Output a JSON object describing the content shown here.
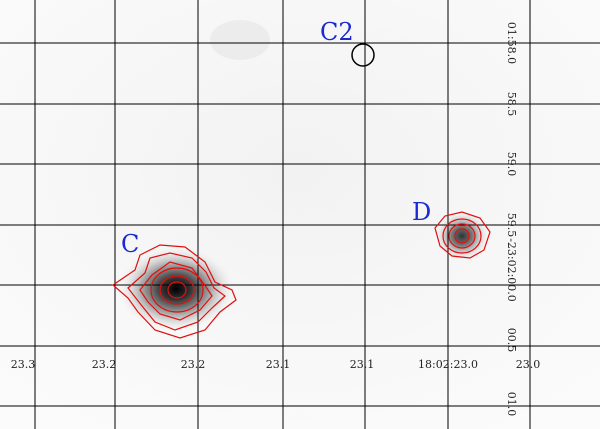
{
  "x_axis": {
    "tick_labels": [
      "23.3",
      "23.2",
      "23.2",
      "23.1",
      "23.1",
      "18:02:23.0",
      "23.0"
    ]
  },
  "y_axis": {
    "tick_labels": [
      "01:58.0",
      "58.5",
      "59.0",
      "59.5",
      "-23:02:00.0",
      "00.5",
      "01.0"
    ]
  },
  "sources": [
    {
      "label": "C2"
    },
    {
      "label": "C"
    },
    {
      "label": "D"
    }
  ]
}
